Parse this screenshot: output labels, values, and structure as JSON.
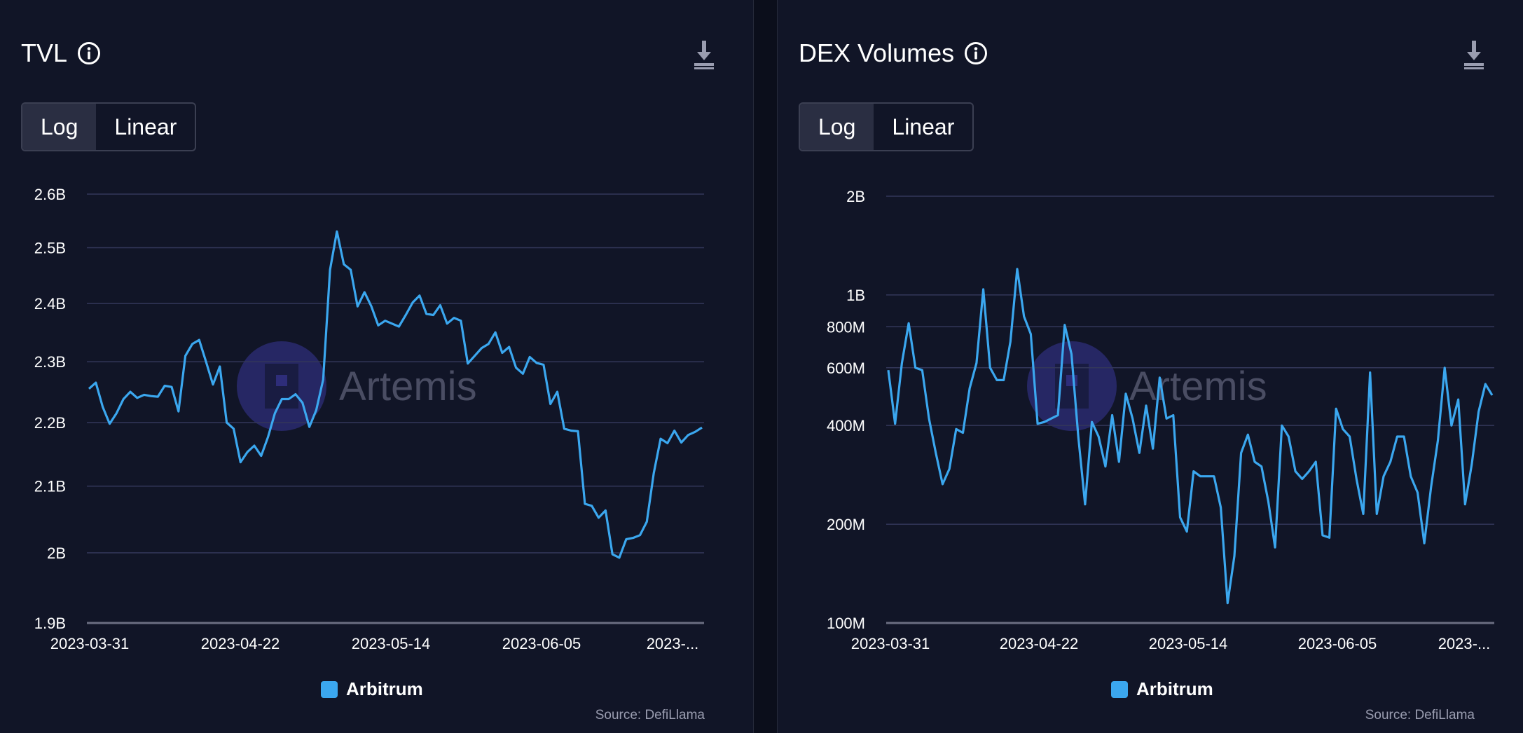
{
  "watermark": {
    "text": "Artemis"
  },
  "source_label": "Source: DefiLlama",
  "colors": {
    "background": "#111527",
    "line": "#3ba7ef",
    "grid": "#33375a",
    "text": "#ffffff",
    "muted": "#9a9db0"
  },
  "icons": {
    "info": "info-icon",
    "download": "download-icon"
  },
  "chart_data": [
    {
      "type": "line",
      "title": "TVL",
      "scale_options": [
        "Log",
        "Linear"
      ],
      "selected_scale": "Log",
      "y_scale": "log",
      "ylim": [
        1.9,
        2.6
      ],
      "yticks": [
        {
          "value": 2.6,
          "label": "2.6B"
        },
        {
          "value": 2.5,
          "label": "2.5B"
        },
        {
          "value": 2.4,
          "label": "2.4B"
        },
        {
          "value": 2.3,
          "label": "2.3B"
        },
        {
          "value": 2.2,
          "label": "2.2B"
        },
        {
          "value": 2.1,
          "label": "2.1B"
        },
        {
          "value": 2.0,
          "label": "2B"
        },
        {
          "value": 1.9,
          "label": "1.9B"
        }
      ],
      "xticks": [
        "2023-03-31",
        "2023-04-22",
        "2023-05-14",
        "2023-06-05",
        "2023-..."
      ],
      "x_start": "2023-03-31",
      "x_end": "2023-06-29",
      "legend": "Arbitrum",
      "series": [
        {
          "name": "Arbitrum",
          "values": [
            2.255,
            2.265,
            2.225,
            2.198,
            2.215,
            2.238,
            2.25,
            2.24,
            2.245,
            2.243,
            2.242,
            2.26,
            2.258,
            2.218,
            2.31,
            2.33,
            2.337,
            2.3,
            2.262,
            2.292,
            2.2,
            2.19,
            2.137,
            2.153,
            2.163,
            2.147,
            2.177,
            2.215,
            2.238,
            2.238,
            2.246,
            2.232,
            2.193,
            2.22,
            2.27,
            2.46,
            2.53,
            2.47,
            2.46,
            2.395,
            2.42,
            2.395,
            2.362,
            2.37,
            2.365,
            2.36,
            2.38,
            2.402,
            2.414,
            2.382,
            2.38,
            2.397,
            2.365,
            2.375,
            2.37,
            2.297,
            2.31,
            2.323,
            2.33,
            2.35,
            2.315,
            2.325,
            2.29,
            2.28,
            2.308,
            2.298,
            2.295,
            2.23,
            2.25,
            2.19,
            2.187,
            2.186,
            2.073,
            2.07,
            2.052,
            2.063,
            1.998,
            1.993,
            2.02,
            2.022,
            2.026,
            2.046,
            2.12,
            2.174,
            2.167,
            2.187,
            2.168,
            2.18,
            2.185,
            2.192
          ]
        }
      ]
    },
    {
      "type": "line",
      "title": "DEX Volumes",
      "scale_options": [
        "Log",
        "Linear"
      ],
      "selected_scale": "Log",
      "y_scale": "log",
      "ylim": [
        100,
        2000
      ],
      "yticks": [
        {
          "value": 2000,
          "label": "2B"
        },
        {
          "value": 1000,
          "label": "1B"
        },
        {
          "value": 800,
          "label": "800M"
        },
        {
          "value": 600,
          "label": "600M"
        },
        {
          "value": 400,
          "label": "400M"
        },
        {
          "value": 200,
          "label": "200M"
        },
        {
          "value": 100,
          "label": "100M"
        }
      ],
      "xticks": [
        "2023-03-31",
        "2023-04-22",
        "2023-05-14",
        "2023-06-05",
        "2023-..."
      ],
      "x_start": "2023-03-31",
      "x_end": "2023-06-29",
      "legend": "Arbitrum",
      "series": [
        {
          "name": "Arbitrum",
          "values": [
            590,
            405,
            620,
            820,
            600,
            590,
            420,
            330,
            265,
            295,
            390,
            380,
            520,
            620,
            1040,
            600,
            550,
            550,
            720,
            1200,
            860,
            760,
            405,
            410,
            420,
            430,
            810,
            660,
            370,
            230,
            410,
            370,
            300,
            430,
            310,
            500,
            420,
            330,
            460,
            340,
            560,
            420,
            430,
            210,
            190,
            290,
            280,
            280,
            280,
            225,
            115,
            160,
            330,
            375,
            310,
            300,
            235,
            170,
            400,
            370,
            290,
            275,
            290,
            310,
            185,
            182,
            450,
            390,
            370,
            275,
            215,
            580,
            215,
            280,
            310,
            370,
            370,
            280,
            250,
            175,
            260,
            360,
            600,
            400,
            480,
            230,
            305,
            440,
            535,
            495
          ]
        }
      ]
    }
  ]
}
